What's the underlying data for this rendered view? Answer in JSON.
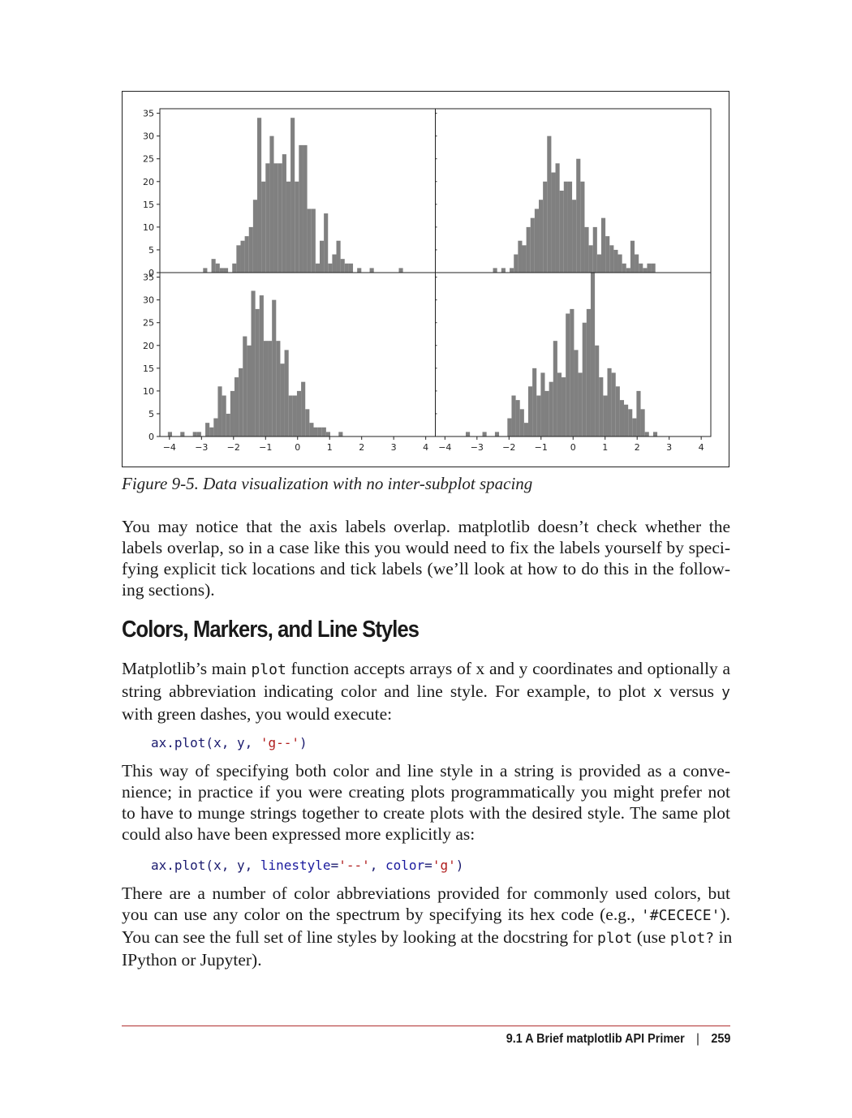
{
  "figure": {
    "caption": "Figure 9-5. Data visualization with no inter-subplot spacing"
  },
  "chart_data": {
    "type": "bar",
    "layout": "2x2 subplots, shared axes, no spacing",
    "bar_color": "#808080",
    "xlim": [
      -4.3,
      4.3
    ],
    "ylim": [
      0,
      36
    ],
    "xticks": [
      -4,
      -3,
      -2,
      -1,
      0,
      1,
      2,
      3,
      4
    ],
    "xtick_labels": [
      "−4",
      "−3",
      "−2",
      "−1",
      "0",
      "1",
      "2",
      "3",
      "4"
    ],
    "yticks": [
      0,
      5,
      10,
      15,
      20,
      25,
      30,
      35
    ],
    "ytick_labels": [
      "0",
      "5",
      "10",
      "15",
      "20",
      "25",
      "30",
      "35"
    ],
    "bin_width": 0.13,
    "subplots": [
      {
        "position": "top-left",
        "bin_start": -2.95,
        "counts": [
          1,
          0,
          3,
          2,
          1,
          1,
          0,
          2,
          6,
          7,
          8,
          10,
          16,
          34,
          20,
          24,
          30,
          24,
          24,
          26,
          20,
          34,
          20,
          28,
          28,
          14,
          14,
          2,
          7,
          13,
          2,
          4,
          7,
          3,
          2,
          2,
          0,
          1,
          0,
          0,
          1,
          0,
          0,
          0,
          0,
          0,
          0,
          1
        ]
      },
      {
        "position": "top-right",
        "bin_start": -2.5,
        "counts": [
          1,
          0,
          1,
          0,
          1,
          4,
          7,
          6,
          10,
          12,
          14,
          16,
          20,
          30,
          22,
          24,
          18,
          20,
          20,
          16,
          25,
          20,
          10,
          6,
          10,
          4,
          12,
          8,
          6,
          5,
          4,
          2,
          1,
          7,
          4,
          2,
          1,
          2,
          2,
          0,
          0,
          0,
          0,
          0,
          0,
          0,
          0,
          0
        ]
      },
      {
        "position": "bottom-left",
        "bin_start": -4.05,
        "counts": [
          1,
          0,
          0,
          1,
          0,
          0,
          1,
          1,
          0,
          3,
          2,
          4,
          11,
          9,
          5,
          10,
          13,
          15,
          22,
          20,
          32,
          28,
          31,
          21,
          21,
          30,
          21,
          16,
          19,
          9,
          9,
          10,
          12,
          6,
          3,
          2,
          2,
          2,
          1,
          0,
          0,
          1,
          0,
          0,
          0,
          0,
          0,
          0
        ]
      },
      {
        "position": "bottom-right",
        "bin_start": -3.35,
        "counts": [
          1,
          0,
          0,
          0,
          1,
          0,
          0,
          1,
          0,
          0,
          4,
          9,
          8,
          6,
          3,
          11,
          15,
          9,
          14,
          10,
          12,
          21,
          14,
          13,
          27,
          28,
          19,
          14,
          25,
          28,
          36,
          20,
          13,
          9,
          15,
          14,
          11,
          8,
          7,
          6,
          4,
          10,
          6,
          1,
          0,
          1,
          0,
          0
        ]
      }
    ]
  },
  "paragraphs": {
    "p1": {
      "lines": [
        "You may notice that the axis labels overlap. matplotlib doesn’t check whether the",
        "labels overlap, so in a case like this you would need to fix the labels yourself by speci-",
        "fying explicit tick locations and tick labels (we’ll look at how to do this in the follow-",
        "ing sections)."
      ]
    },
    "p2": {
      "l1": "Matplotlib’s main ",
      "l1_code": "plot",
      "l1_rest": " function accepts arrays of x and y coordinates and optionally a",
      "l2a": "string abbreviation indicating color and line style. For example, to plot ",
      "l2_code_x": "x",
      "l2b": " versus ",
      "l2_code_y": "y",
      "l3": "with green dashes, you would execute:"
    },
    "p3": {
      "lines": [
        "This way of specifying both color and line style in a string is provided as a conve-",
        "nience; in practice if you were creating plots programmatically you might prefer not",
        "to have to munge strings together to create plots with the desired style. The same plot",
        "could also have been expressed more explicitly as:"
      ]
    },
    "p4": {
      "l1": "There are a number of color abbreviations provided for commonly used colors, but",
      "l2a": "you can use any color on the spectrum by specifying its hex code (e.g., ",
      "l2_code": "'#CECECE'",
      "l2b": ").",
      "l3a": "You can see the full set of line styles by looking at the docstring for ",
      "l3_code1": "plot",
      "l3b": " (use ",
      "l3_code2": "plot?",
      "l3c": " in",
      "l4": "IPython or Jupyter)."
    }
  },
  "section_heading": "Colors, Markers, and Line Styles",
  "code1": {
    "pre": "ax.plot(x, y, ",
    "str": "'g--'",
    "post": ")"
  },
  "code2": {
    "pre": "ax.plot(x, y, ",
    "kw1": "linestyle",
    "eq1": "=",
    "str1": "'--'",
    "mid": ", ",
    "kw2": "color",
    "eq2": "=",
    "str2": "'g'",
    "post": ")"
  },
  "footer": {
    "section": "9.1 A Brief matplotlib API Primer",
    "separator": "|",
    "page_number": "259"
  }
}
